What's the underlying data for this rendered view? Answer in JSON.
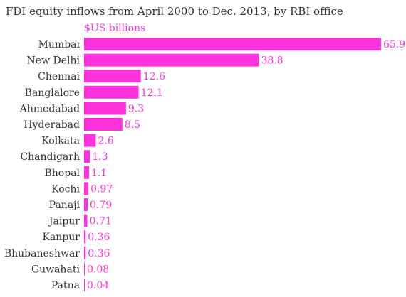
{
  "chart_data": {
    "type": "bar",
    "orientation": "horizontal",
    "title": "FDI equity inflows from April 2000 to Dec. 2013, by RBI office",
    "unit_label": "$US billions",
    "categories": [
      "Mumbai",
      "New Delhi",
      "Chennai",
      "Banglalore",
      "Ahmedabad",
      "Hyderabad",
      "Kolkata",
      "Chandigarh",
      "Bhopal",
      "Kochi",
      "Panaji",
      "Jaipur",
      "Kanpur",
      "Bhubaneshwar",
      "Guwahati",
      "Patna"
    ],
    "values": [
      65.9,
      38.8,
      12.6,
      12.1,
      9.3,
      8.5,
      2.6,
      1.3,
      1.1,
      0.97,
      0.79,
      0.71,
      0.36,
      0.36,
      0.08,
      0.04
    ],
    "value_labels": [
      "65.9",
      "38.8",
      "12.6",
      "12.1",
      "9.3",
      "8.5",
      "2.6",
      "1.3",
      "1.1",
      "0.97",
      "0.79",
      "0.71",
      "0.36",
      "0.36",
      "0.08",
      "0.04"
    ],
    "xlim": [
      0,
      65.9
    ],
    "grid": false,
    "legend": "none",
    "bar_color": "#ff33dd",
    "label_color": "#ff33dd",
    "text_color": "#333333"
  }
}
